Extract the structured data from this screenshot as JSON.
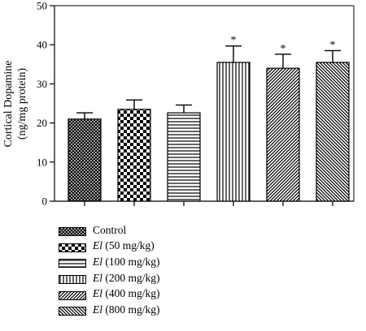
{
  "chart_data": {
    "type": "bar",
    "title": "",
    "xlabel": "",
    "ylabel_line1": "Cortical Dopamine",
    "ylabel_line2": "(ng/mg protein)",
    "ylim": [
      0,
      50
    ],
    "yticks": [
      "0",
      "10",
      "20",
      "30",
      "40",
      "50"
    ],
    "grid": false,
    "legend_placement": "bottom-left",
    "categories": [
      {
        "prefix": "",
        "name": "Control"
      },
      {
        "prefix": "El",
        "name": " (50 mg/kg)"
      },
      {
        "prefix": "El",
        "name": " (100 mg/kg)"
      },
      {
        "prefix": "El",
        "name": " (200 mg/kg)"
      },
      {
        "prefix": "El",
        "name": " (400 mg/kg)"
      },
      {
        "prefix": "El",
        "name": " (800 mg/kg)"
      }
    ],
    "values": [
      21.0,
      23.5,
      22.6,
      35.5,
      34.0,
      35.5
    ],
    "errors": [
      1.6,
      2.4,
      2.0,
      4.2,
      3.6,
      3.0
    ],
    "significance": [
      "",
      "",
      "",
      "*",
      "*",
      "*"
    ],
    "patterns": [
      "crosshatch",
      "checker",
      "horizontal",
      "vertical",
      "diagonal-up",
      "diagonal-down"
    ],
    "bar_color": "#000000",
    "background": "#ffffff"
  }
}
